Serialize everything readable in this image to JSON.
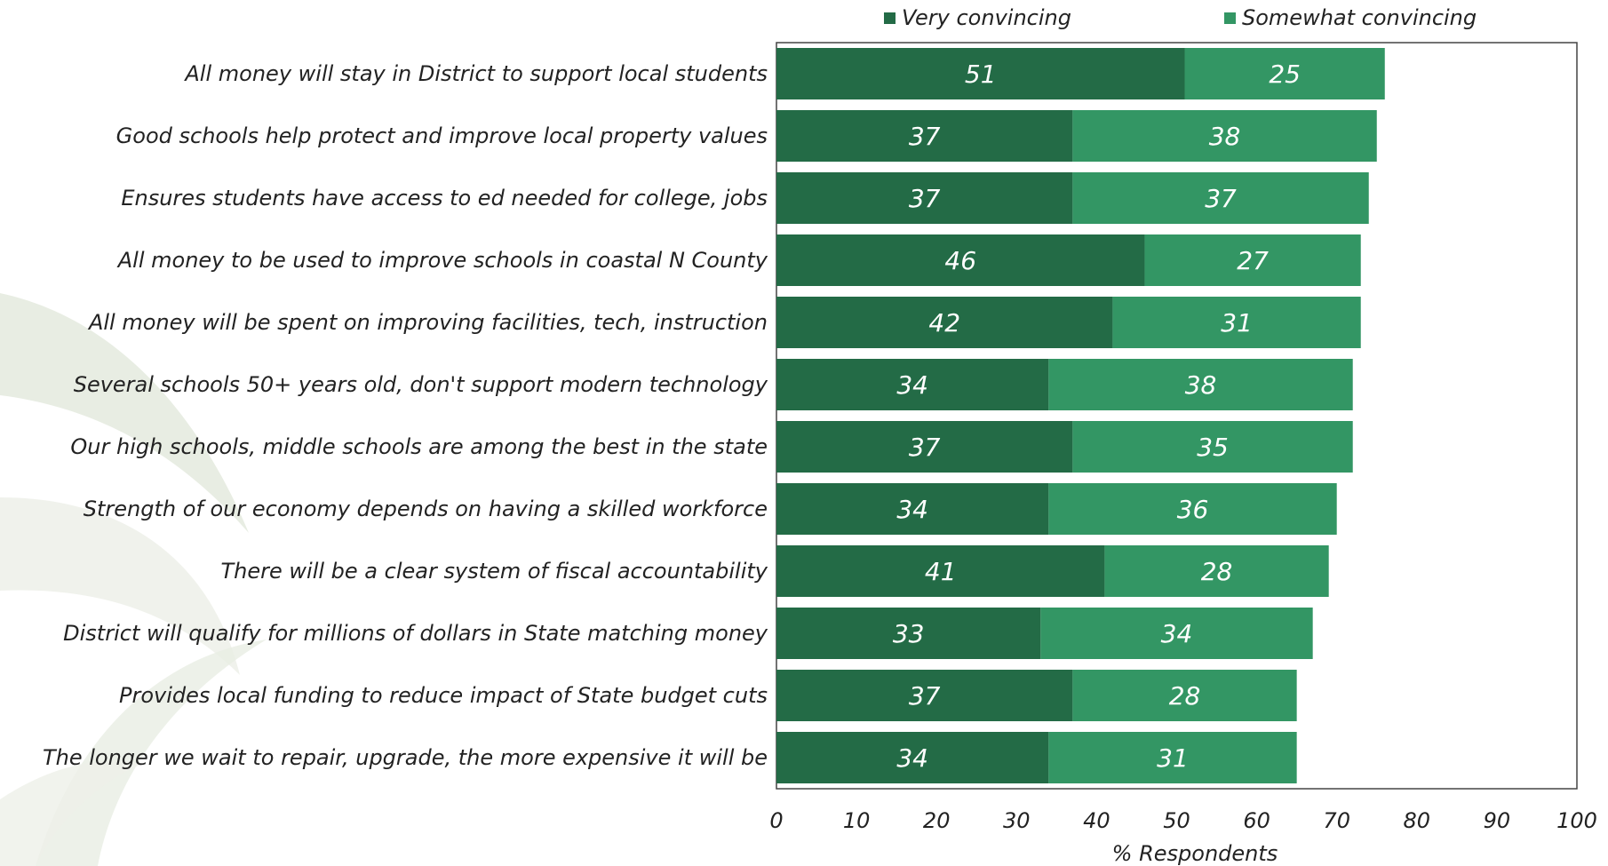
{
  "chart_data": {
    "type": "bar",
    "orientation": "horizontal",
    "stacked": true,
    "categories": [
      "All money will stay in District to support local students",
      "Good schools help protect and improve local property values",
      "Ensures students have access to ed needed for college, jobs",
      "All money to be used to improve schools in coastal N County",
      "All money will be spent on improving facilities, tech, instruction",
      "Several schools 50+ years old, don't support modern technology",
      "Our high schools, middle schools are among the best in the state",
      "Strength of our economy depends on having a skilled workforce",
      "There will be a clear system of fiscal accountability",
      "District will qualify for millions of dollars in State matching money",
      "Provides local funding to reduce impact of State budget cuts",
      "The longer we wait to repair, upgrade, the more expensive it will be"
    ],
    "series": [
      {
        "name": "Very convincing",
        "color": "#236B46",
        "values": [
          51,
          37,
          37,
          46,
          42,
          34,
          37,
          34,
          41,
          33,
          37,
          34
        ]
      },
      {
        "name": "Somewhat convincing",
        "color": "#339664",
        "values": [
          25,
          38,
          37,
          27,
          31,
          38,
          35,
          36,
          28,
          34,
          28,
          31
        ]
      }
    ],
    "xlabel": "% Respondents",
    "ylabel": "",
    "xlim": [
      0,
      100
    ],
    "xticks": [
      0,
      10,
      20,
      30,
      40,
      50,
      60,
      70,
      80,
      90,
      100
    ],
    "grid": false,
    "legend": "top"
  }
}
